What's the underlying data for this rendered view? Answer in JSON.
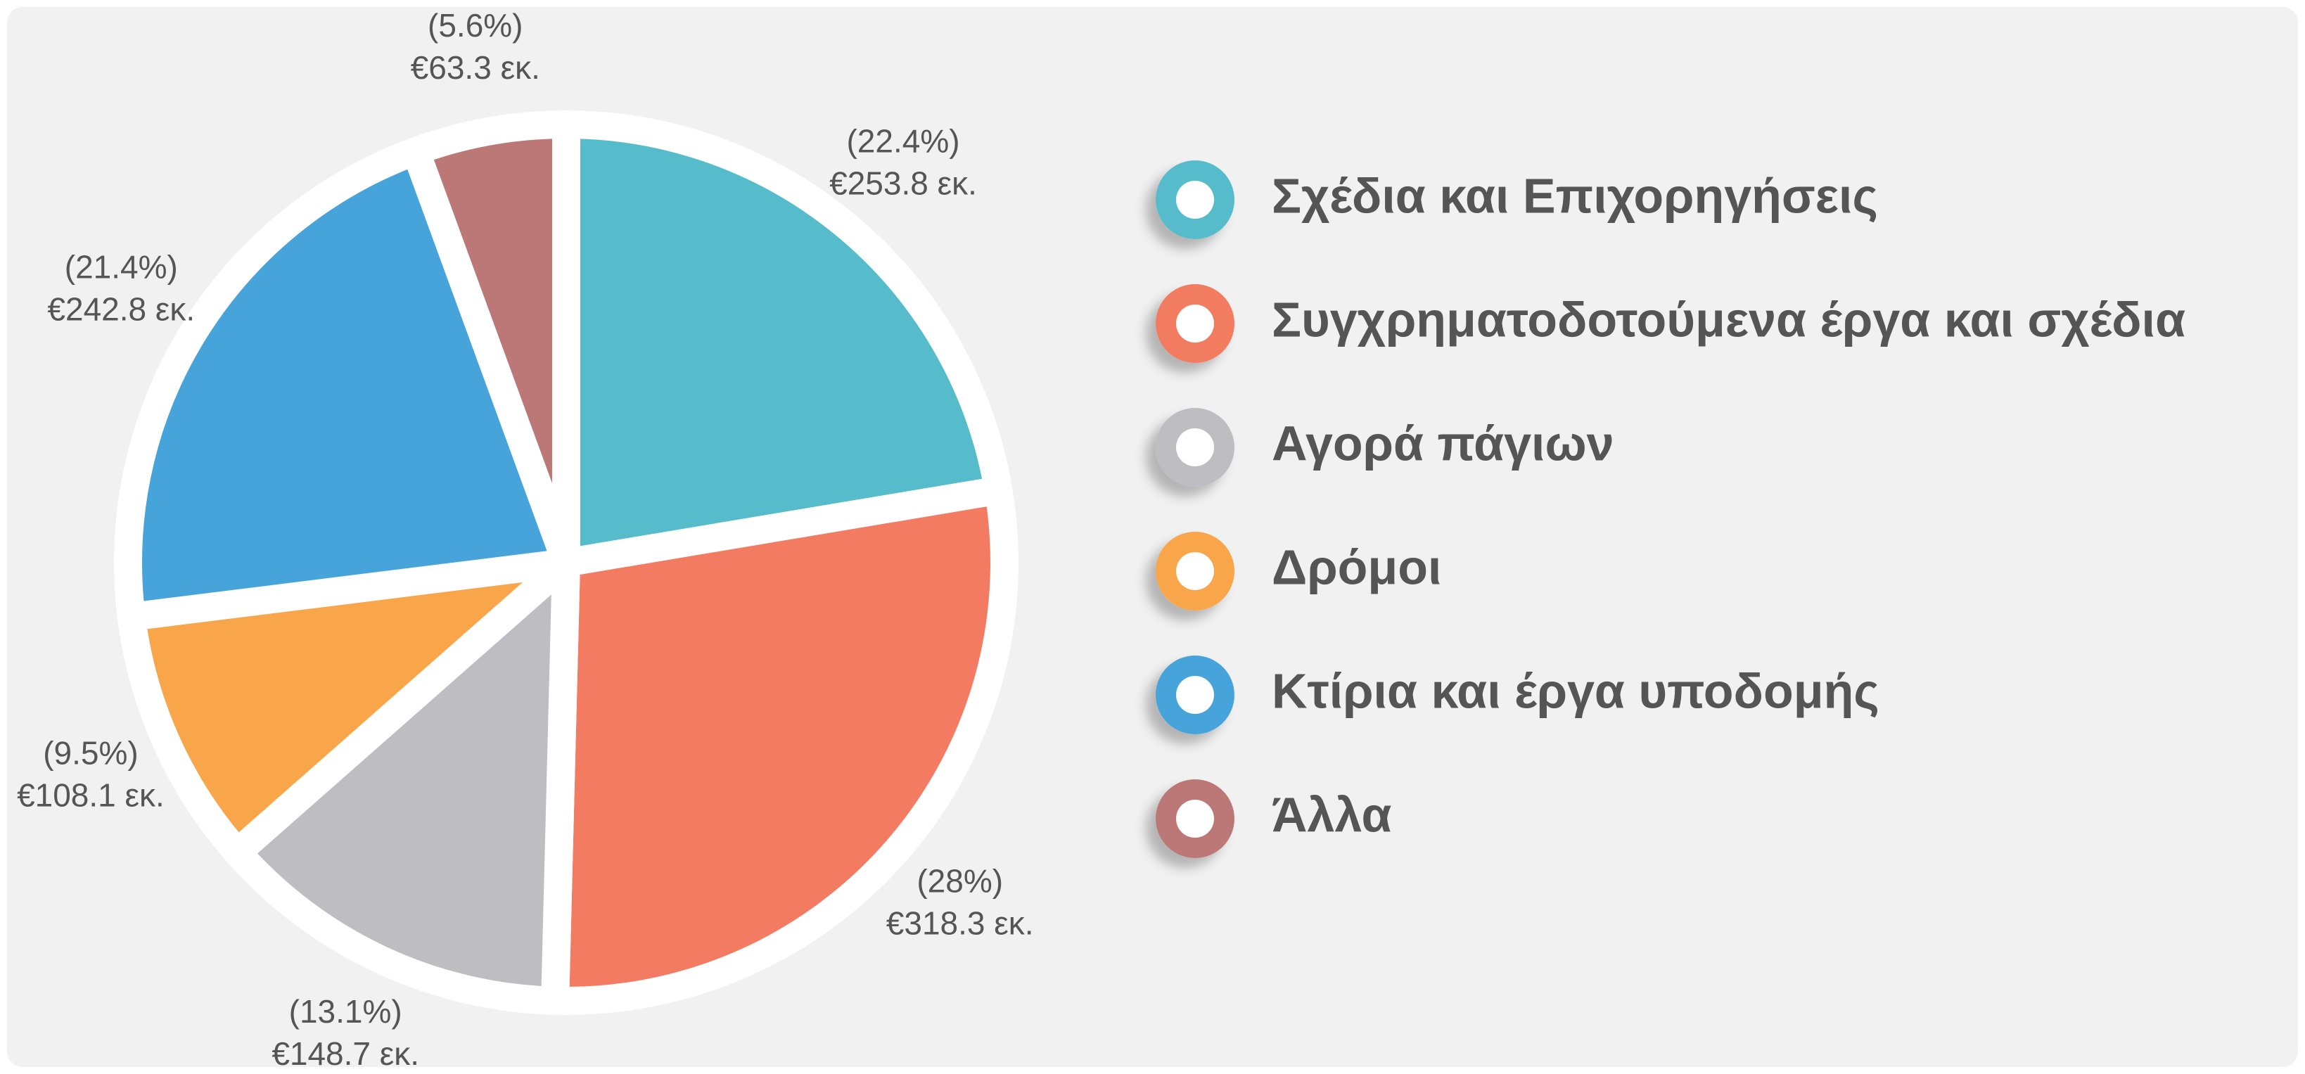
{
  "chart_data": {
    "type": "pie",
    "categories": [
      "Σχέδια και Επιχορηγήσεις",
      "Συγχρηματοδοτούμενα έργα και σχέδια",
      "Αγορά πάγιων",
      "Δρόμοι",
      "Κτίρια και έργα υποδομής",
      "Άλλα"
    ],
    "values": [
      253.8,
      318.3,
      148.7,
      108.1,
      242.8,
      63.3
    ],
    "value_labels": [
      "€253.8 εκ.",
      "€318.3 εκ.",
      "€148.7 εκ.",
      "€108.1 εκ.",
      "€242.8 εκ.",
      "€63.3 εκ."
    ],
    "percentages": [
      22.4,
      28,
      13.1,
      9.5,
      21.4,
      5.6
    ],
    "percentage_labels": [
      "(22.4%)",
      "(28%)",
      "(13.1%)",
      "(9.5%)",
      "(21.4%)",
      "(5.6%)"
    ],
    "colors": [
      "#56bccb",
      "#f27b61",
      "#bdbdc2",
      "#f9a54a",
      "#47a4da",
      "#bb7876"
    ],
    "legend": "right"
  }
}
